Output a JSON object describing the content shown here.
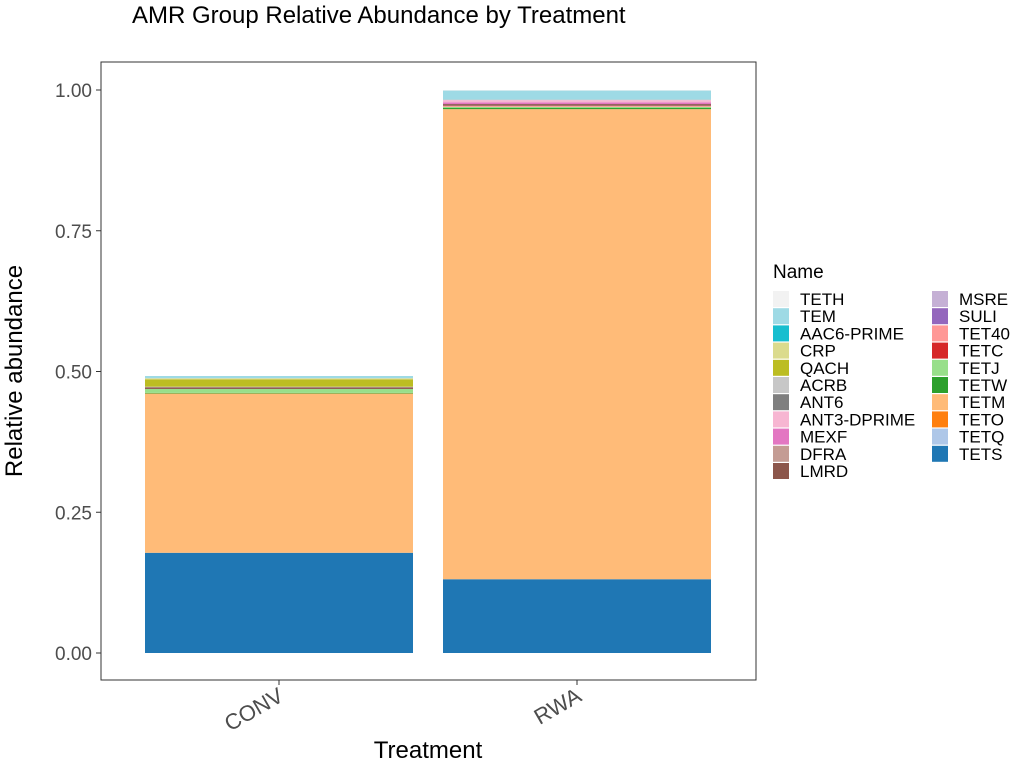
{
  "chart_data": {
    "type": "bar",
    "stacked": true,
    "title": "AMR Group Relative Abundance by Treatment",
    "xlabel": "Treatment",
    "ylabel": "Relative abundance",
    "categories": [
      "CONV",
      "RWA"
    ],
    "ylim": [
      -0.05,
      1.05
    ],
    "yticks": [
      0.0,
      0.25,
      0.5,
      0.75,
      1.0
    ],
    "ytick_labels": [
      "0.00",
      "0.25",
      "0.50",
      "0.75",
      "1.00"
    ],
    "grid": false,
    "legend": {
      "title": "Name",
      "position": "right"
    },
    "series": [
      {
        "name": "TETS",
        "color": "#1f77b4",
        "values": [
          0.178,
          0.131
        ]
      },
      {
        "name": "TETQ",
        "color": "#aec7e8",
        "values": [
          0.0,
          0.0
        ]
      },
      {
        "name": "TETO",
        "color": "#ff7f0e",
        "values": [
          0.0,
          0.0
        ]
      },
      {
        "name": "TETM",
        "color": "#ffbb78",
        "values": [
          0.283,
          0.835
        ]
      },
      {
        "name": "TETW",
        "color": "#2ca02c",
        "values": [
          0.001,
          0.002
        ]
      },
      {
        "name": "TETJ",
        "color": "#98df8a",
        "values": [
          0.007,
          0.002
        ]
      },
      {
        "name": "TETC",
        "color": "#d62728",
        "values": [
          0.0,
          0.0
        ]
      },
      {
        "name": "TET40",
        "color": "#ff9896",
        "values": [
          0.0,
          0.002
        ]
      },
      {
        "name": "SULI",
        "color": "#9467bd",
        "values": [
          0.0,
          0.0
        ]
      },
      {
        "name": "MSRE",
        "color": "#c5b0d5",
        "values": [
          0.0,
          0.0
        ]
      },
      {
        "name": "LMRD",
        "color": "#8c564b",
        "values": [
          0.003,
          0.003
        ]
      },
      {
        "name": "DFRA",
        "color": "#c49c94",
        "values": [
          0.0,
          0.0
        ]
      },
      {
        "name": "MEXF",
        "color": "#e377c2",
        "values": [
          0.0,
          0.003
        ]
      },
      {
        "name": "ANT3-DPRIME",
        "color": "#f7b6d2",
        "values": [
          0.0,
          0.004
        ]
      },
      {
        "name": "ANT6",
        "color": "#7f7f7f",
        "values": [
          0.0,
          0.0
        ]
      },
      {
        "name": "ACRB",
        "color": "#c7c7c7",
        "values": [
          0.001,
          0.001
        ]
      },
      {
        "name": "QACH",
        "color": "#bcbd22",
        "values": [
          0.013,
          0.0
        ]
      },
      {
        "name": "CRP",
        "color": "#dbdb8d",
        "values": [
          0.002,
          0.0
        ]
      },
      {
        "name": "AAC6-PRIME",
        "color": "#17becf",
        "values": [
          0.0,
          0.0
        ]
      },
      {
        "name": "TEM",
        "color": "#9edae5",
        "values": [
          0.004,
          0.016
        ]
      },
      {
        "name": "TETH",
        "color": "#f2f2f2",
        "values": [
          0.0,
          0.001
        ]
      }
    ],
    "legend_order": [
      "TETH",
      "TEM",
      "AAC6-PRIME",
      "CRP",
      "QACH",
      "ACRB",
      "ANT6",
      "ANT3-DPRIME",
      "MEXF",
      "DFRA",
      "LMRD",
      "MSRE",
      "SULI",
      "TET40",
      "TETC",
      "TETJ",
      "TETW",
      "TETM",
      "TETO",
      "TETQ",
      "TETS"
    ]
  }
}
